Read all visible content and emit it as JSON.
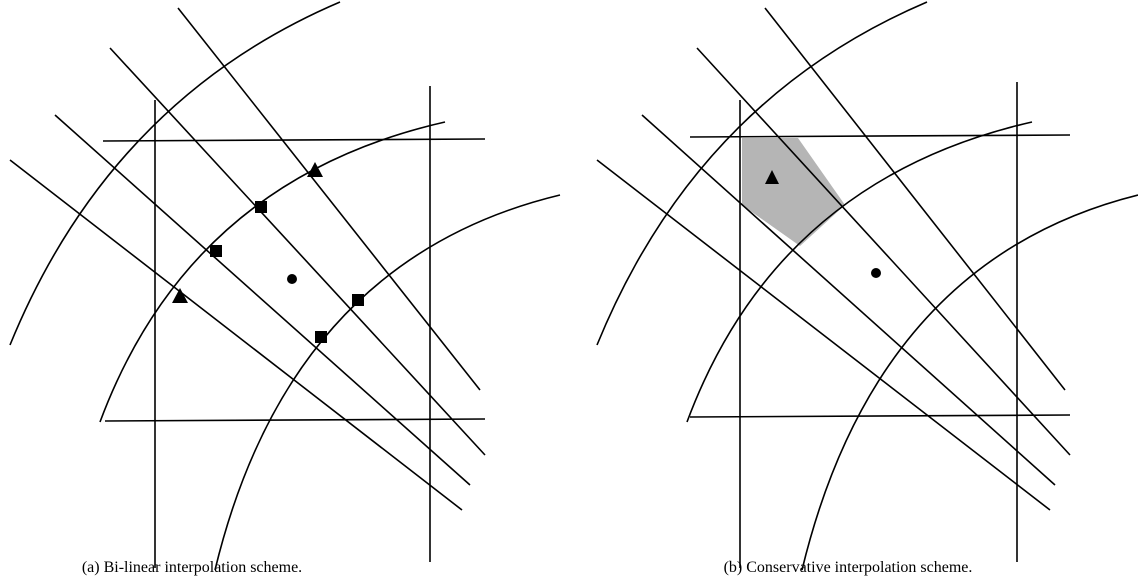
{
  "panels": [
    {
      "caption": "(a) Bi-linear interpolation scheme."
    },
    {
      "caption": "(b) Conservative interpolation scheme."
    }
  ]
}
